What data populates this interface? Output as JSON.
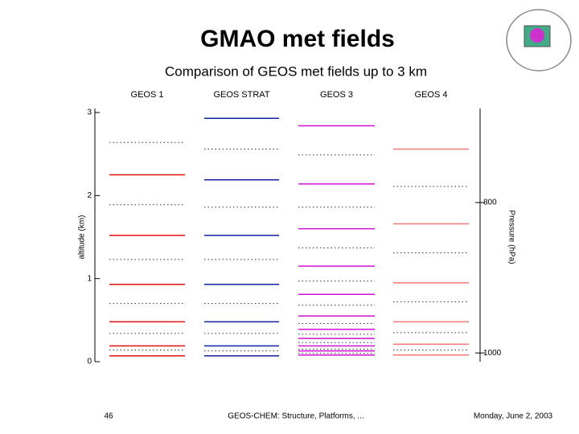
{
  "title": "GMAO met fields",
  "subtitle": "Comparison of GEOS met fields up to 3 km",
  "chart_data": {
    "type": "levels",
    "ylabel": "altitude (km)",
    "y2label": "Pressure (hPa)",
    "ylim": [
      0,
      3
    ],
    "yticks": [
      0,
      1,
      2,
      3
    ],
    "y2lim": [
      1013,
      700
    ],
    "y2scale": "log",
    "y2ticks": [
      800,
      1000
    ],
    "series": [
      {
        "name": "GEOS 1",
        "color": "#e01010",
        "edges": [
          2.25,
          1.52,
          0.93,
          0.48,
          0.19,
          0.07
        ],
        "centers": [
          2.64,
          1.89,
          1.23,
          0.7,
          0.34,
          0.14
        ]
      },
      {
        "name": "GEOS STRAT",
        "color": "#1020a0",
        "edges": [
          2.93,
          2.19,
          1.52,
          0.93,
          0.48,
          0.19,
          0.07
        ],
        "centers": [
          2.56,
          1.86,
          1.23,
          0.7,
          0.34,
          0.13
        ]
      },
      {
        "name": "GEOS 3",
        "color": "#d010d0",
        "edges": [
          2.84,
          2.14,
          1.6,
          1.15,
          0.81,
          0.55,
          0.39,
          0.28,
          0.19,
          0.13,
          0.08
        ],
        "centers": [
          2.49,
          1.86,
          1.37,
          0.97,
          0.68,
          0.46,
          0.33,
          0.23,
          0.15,
          0.1
        ]
      },
      {
        "name": "GEOS 4",
        "color": "#f07878",
        "edges": [
          2.56,
          1.66,
          0.95,
          0.48,
          0.21,
          0.08
        ],
        "centers": [
          2.11,
          1.31,
          0.72,
          0.35,
          0.14
        ]
      }
    ]
  },
  "footer": {
    "page": "46",
    "center": "GEOS-CHEM: Structure, Platforms, ...",
    "date": "Monday, June 2, 2003"
  }
}
